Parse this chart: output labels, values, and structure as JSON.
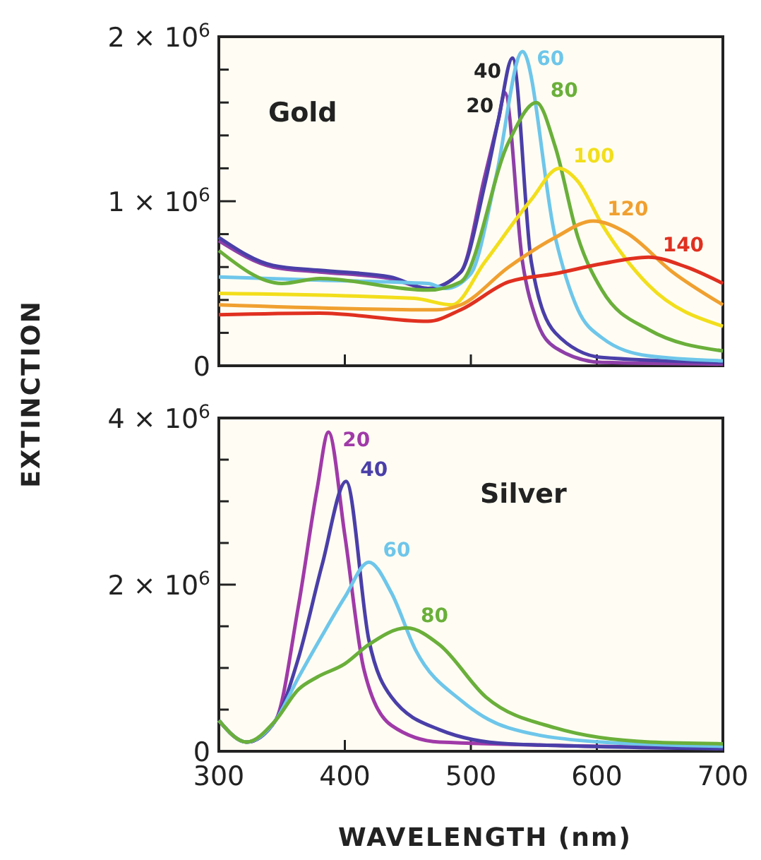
{
  "chart_data": [
    {
      "type": "line",
      "annotations": [
        "Gold"
      ],
      "ylabel": "EXTINCTION",
      "xlim": [
        300,
        700
      ],
      "ylim": [
        0,
        2000000
      ],
      "tick_labels": "y",
      "xticks": [
        {
          "value": 300,
          "label": null
        },
        {
          "value": 400,
          "label": null
        },
        {
          "value": 500,
          "label": null
        },
        {
          "value": 600,
          "label": null
        },
        {
          "value": 700,
          "label": null
        }
      ],
      "yticks": [
        0,
        {
          "value": 200000,
          "label": null
        },
        {
          "value": 400000,
          "label": null
        },
        {
          "value": 600000,
          "label": null
        },
        {
          "value": 800000,
          "label": null
        },
        {
          "value": 1000000,
          "label": "1 × 10$^{6}$"
        },
        {
          "value": 1200000,
          "label": null
        },
        {
          "value": 1400000,
          "label": null
        },
        {
          "value": 1600000,
          "label": null
        },
        {
          "value": 1800000,
          "label": null
        },
        {
          "value": 2000000,
          "label": "2 × 10$^{6}$"
        }
      ],
      "series": [
        {
          "name": "20",
          "color": "#8e3fa8",
          "x": [
            300,
            343,
            380,
            436,
            466,
            492,
            511,
            522,
            527,
            541,
            552,
            567,
            604,
            700
          ],
          "values": [
            760000,
            600000,
            570000,
            530000,
            470000,
            570000,
            1150000,
            1500000,
            1660000,
            630000,
            280000,
            110000,
            20000,
            10000
          ]
        },
        {
          "name": "40",
          "color": "#4a3fa8",
          "x": [
            300,
            343,
            380,
            436,
            466,
            492,
            511,
            522,
            533,
            548,
            567,
            604,
            700
          ],
          "values": [
            780000,
            610000,
            580000,
            540000,
            470000,
            570000,
            1100000,
            1500000,
            1870000,
            630000,
            200000,
            50000,
            20000
          ]
        },
        {
          "name": "60",
          "color": "#6ec6ea",
          "x": [
            300,
            380,
            466,
            480,
            500,
            520,
            541,
            567,
            585,
            604,
            641,
            700
          ],
          "values": [
            540000,
            520000,
            500000,
            470000,
            560000,
            1150000,
            1910000,
            780000,
            340000,
            170000,
            60000,
            30000
          ]
        },
        {
          "name": "80",
          "color": "#6aaf3a",
          "x": [
            300,
            350,
            380,
            466,
            492,
            530,
            552,
            567,
            585,
            604,
            641,
            700
          ],
          "values": [
            700000,
            500000,
            530000,
            460000,
            510000,
            1360000,
            1600000,
            1330000,
            780000,
            460000,
            220000,
            90000
          ]
        },
        {
          "name": "100",
          "color": "#f2de1c",
          "x": [
            300,
            455,
            485,
            511,
            548,
            570,
            585,
            604,
            641,
            700
          ],
          "values": [
            440000,
            410000,
            370000,
            630000,
            1010000,
            1200000,
            1120000,
            860000,
            490000,
            240000
          ]
        },
        {
          "name": "120",
          "color": "#f0a030",
          "x": [
            300,
            473,
            492,
            530,
            567,
            597,
            623,
            660,
            700
          ],
          "values": [
            370000,
            340000,
            370000,
            600000,
            780000,
            880000,
            810000,
            570000,
            370000
          ]
        },
        {
          "name": "140",
          "color": "#e03020",
          "x": [
            300,
            380,
            466,
            492,
            530,
            567,
            604,
            641,
            671,
            700
          ],
          "values": [
            310000,
            320000,
            270000,
            340000,
            510000,
            560000,
            620000,
            660000,
            600000,
            500000
          ]
        }
      ]
    },
    {
      "type": "line",
      "annotations": [
        "Silver"
      ],
      "xlabel": "WAVELENGTH (nm)",
      "xlim": [
        300,
        700
      ],
      "ylim": [
        0,
        4000000
      ],
      "xticks": [
        300,
        400,
        500,
        600,
        700
      ],
      "yticks": [
        0,
        {
          "value": 500000,
          "label": null
        },
        {
          "value": 1000000,
          "label": null
        },
        {
          "value": 1500000,
          "label": null
        },
        {
          "value": 2000000,
          "label": "2 × 10$^{6}$"
        },
        {
          "value": 2500000,
          "label": null
        },
        {
          "value": 3000000,
          "label": null
        },
        {
          "value": 3500000,
          "label": null
        },
        {
          "value": 4000000,
          "label": "4 × 10$^{6}$"
        }
      ],
      "series": [
        {
          "name": "20",
          "color": "#a03aa8",
          "x": [
            300,
            322,
            345,
            363,
            378,
            387,
            400,
            415,
            437,
            475,
            700
          ],
          "values": [
            370000,
            110000,
            370000,
            1730000,
            3150000,
            3830000,
            2590000,
            990000,
            310000,
            110000,
            40000
          ]
        },
        {
          "name": "40",
          "color": "#4a3fa8",
          "x": [
            300,
            322,
            345,
            363,
            382,
            401,
            419,
            437,
            475,
            530,
            700
          ],
          "values": [
            370000,
            110000,
            370000,
            1110000,
            2240000,
            3240000,
            1340000,
            650000,
            260000,
            90000,
            30000
          ]
        },
        {
          "name": "60",
          "color": "#6ec6ea",
          "x": [
            300,
            322,
            345,
            363,
            382,
            400,
            419,
            437,
            456,
            493,
            530,
            604,
            700
          ],
          "values": [
            370000,
            110000,
            370000,
            880000,
            1390000,
            1850000,
            2270000,
            1900000,
            1220000,
            600000,
            280000,
            110000,
            60000
          ]
        },
        {
          "name": "80",
          "color": "#6aaf3a",
          "x": [
            300,
            322,
            345,
            363,
            378,
            400,
            419,
            449,
            475,
            512,
            567,
            642,
            700
          ],
          "values": [
            370000,
            110000,
            370000,
            740000,
            890000,
            1050000,
            1280000,
            1480000,
            1280000,
            650000,
            280000,
            110000,
            90000
          ]
        }
      ]
    }
  ]
}
